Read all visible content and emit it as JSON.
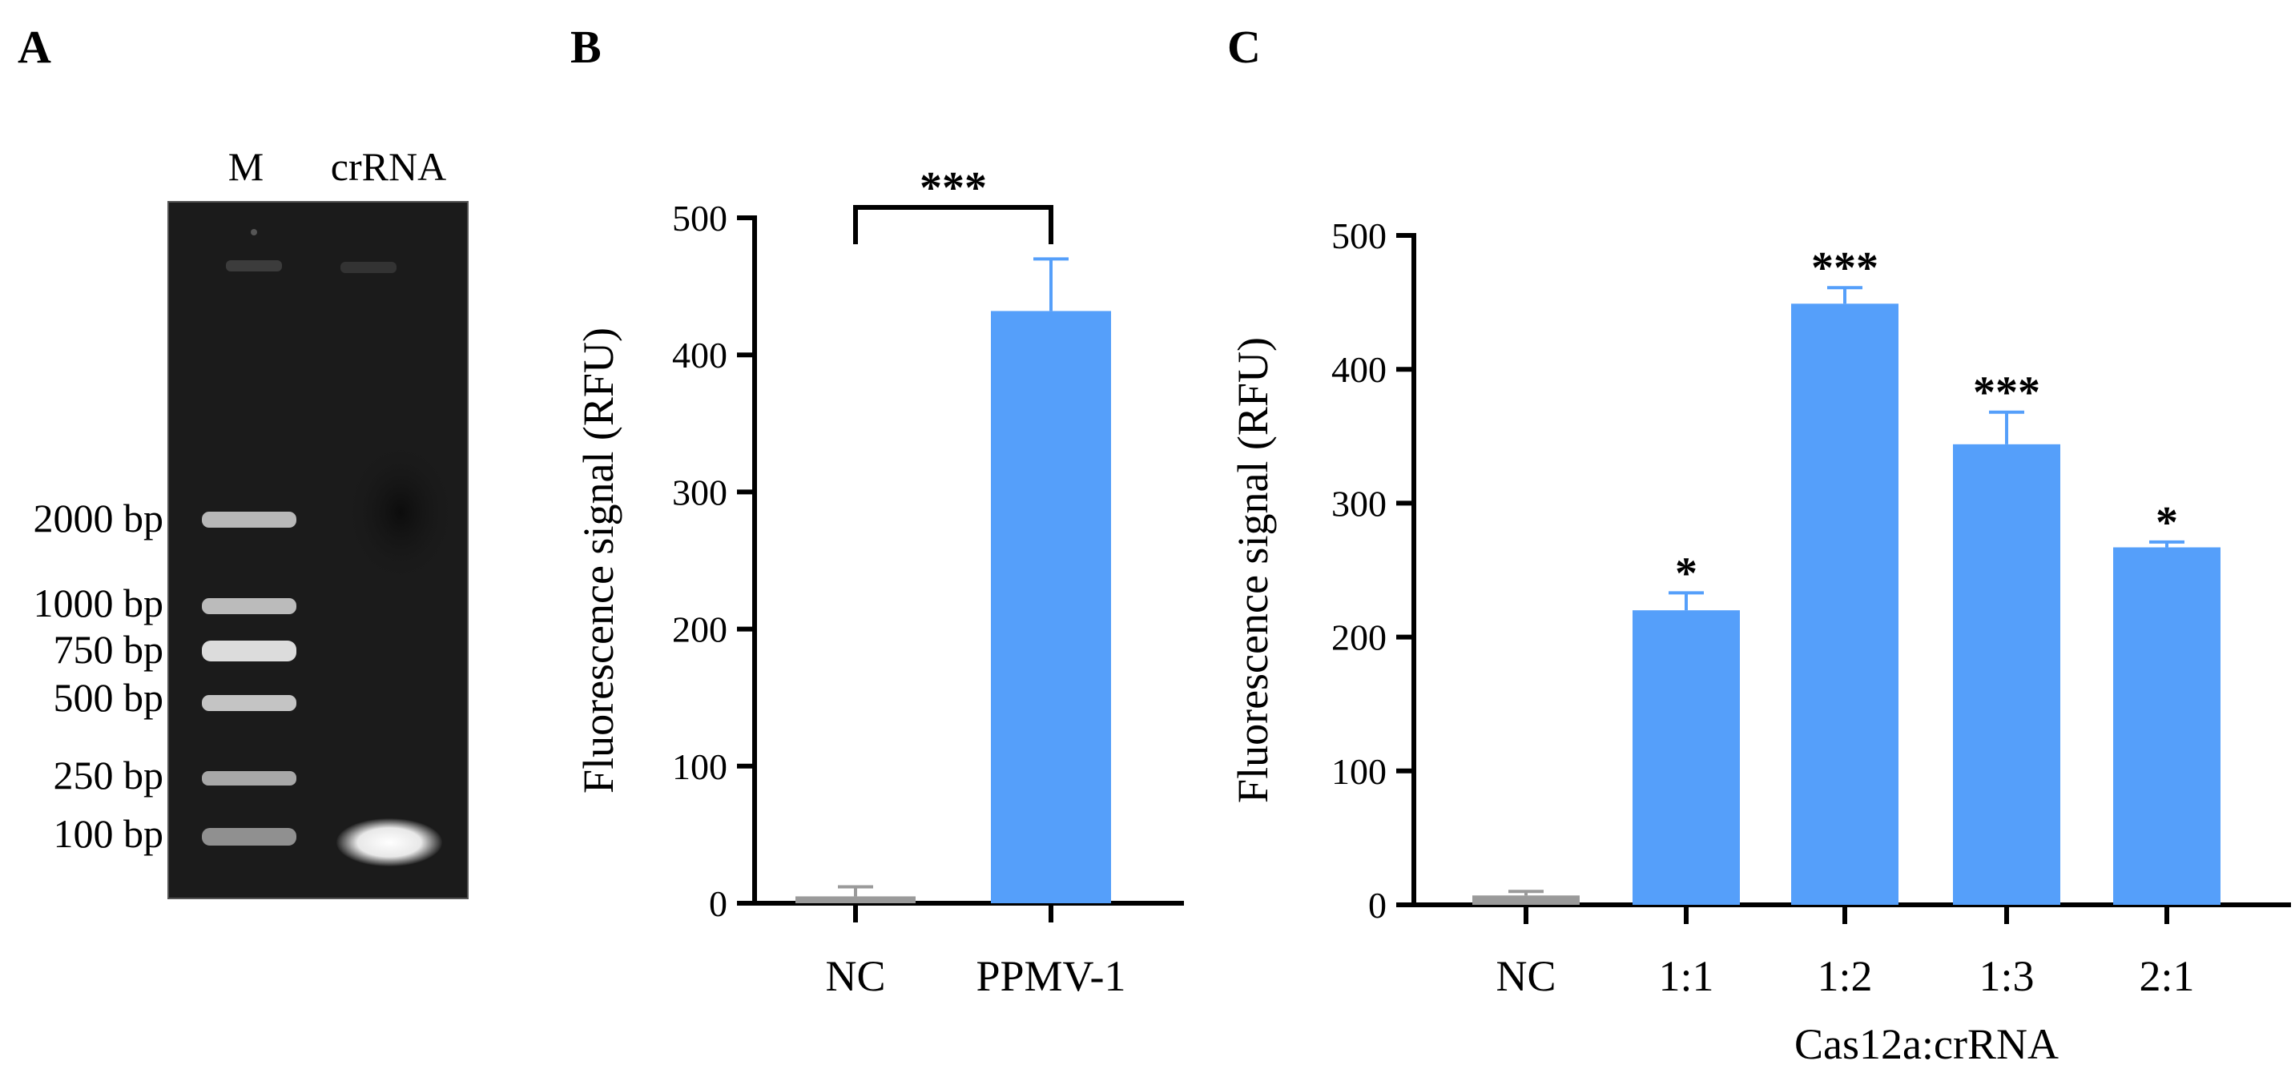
{
  "panels": {
    "a": "A",
    "b": "B",
    "c": "C"
  },
  "gel": {
    "lanes": [
      "M",
      "crRNA"
    ],
    "markers": [
      "2000 bp",
      "1000 bp",
      "750 bp",
      "500 bp",
      "250 bp",
      "100 bp"
    ]
  },
  "chart_data": [
    {
      "type": "bar",
      "panel": "B",
      "categories": [
        "NC",
        "PPMV-1"
      ],
      "values": [
        5,
        432
      ],
      "errors": [
        7,
        38
      ],
      "colors": [
        "#9a9a9a",
        "#559ffa"
      ],
      "ylabel": "Fluorescence signal (RFU)",
      "xlabel": "",
      "ylim": [
        0,
        500
      ],
      "yticks": [
        0,
        100,
        200,
        300,
        400,
        500
      ],
      "annotations": [
        {
          "from": 0,
          "to": 1,
          "text": "***"
        }
      ]
    },
    {
      "type": "bar",
      "panel": "C",
      "categories": [
        "NC",
        "1:1",
        "1:2",
        "1:3",
        "2:1"
      ],
      "values": [
        7,
        220,
        449,
        344,
        267
      ],
      "errors": [
        3,
        13,
        12,
        24,
        4
      ],
      "colors": [
        "#9a9a9a",
        "#559ffa",
        "#559ffa",
        "#559ffa",
        "#559ffa"
      ],
      "significance": [
        "",
        "*",
        "***",
        "***",
        "*"
      ],
      "ylabel": "Fluorescence signal (RFU)",
      "xlabel": "Cas12a:crRNA",
      "ylim": [
        0,
        500
      ],
      "yticks": [
        0,
        100,
        200,
        300,
        400,
        500
      ]
    }
  ]
}
